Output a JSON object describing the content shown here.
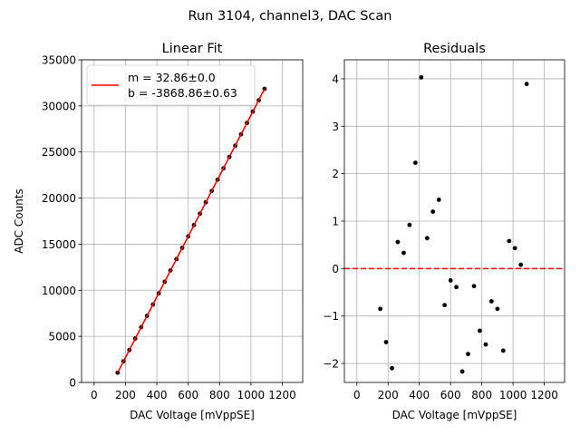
{
  "figure": {
    "suptitle": "Run 3104, channel3, DAC Scan"
  },
  "chart_data": [
    {
      "type": "line",
      "title": "Linear Fit",
      "xlabel": "DAC Voltage [mVppSE]",
      "ylabel": "ADC Counts",
      "xlim": [
        -80,
        1330
      ],
      "ylim": [
        0,
        35000
      ],
      "xticks": [
        0,
        200,
        400,
        600,
        800,
        1000,
        1200
      ],
      "yticks": [
        0,
        5000,
        10000,
        15000,
        20000,
        25000,
        30000,
        35000
      ],
      "grid": true,
      "legend": {
        "placement": "upper-left",
        "entries": [
          "m = 32.86±0.0",
          "b = -3868.86±0.63"
        ]
      },
      "series": [
        {
          "name": "data",
          "style": "scatter",
          "color": "#000000",
          "x": [
            150,
            187,
            225,
            262,
            300,
            337,
            375,
            412,
            450,
            487,
            525,
            562,
            600,
            637,
            675,
            712,
            750,
            787,
            825,
            862,
            900,
            937,
            975,
            1012,
            1050,
            1087
          ],
          "y": [
            1060,
            2290,
            3520,
            4760,
            5990,
            7220,
            8450,
            9670,
            10920,
            12150,
            13380,
            14610,
            15850,
            17080,
            18310,
            19540,
            20770,
            22000,
            23230,
            24460,
            25690,
            26920,
            28150,
            29380,
            30610,
            31850
          ]
        },
        {
          "name": "fit",
          "style": "line",
          "color": "#ff0000",
          "x": [
            150,
            1087
          ],
          "y": [
            1060,
            31850
          ]
        }
      ]
    },
    {
      "type": "scatter",
      "title": "Residuals",
      "xlabel": "DAC Voltage [mVppSE]",
      "ylabel": "",
      "xlim": [
        -80,
        1330
      ],
      "ylim": [
        -2.4,
        4.4
      ],
      "xticks": [
        0,
        200,
        400,
        600,
        800,
        1000,
        1200
      ],
      "yticks": [
        -2,
        -1,
        0,
        1,
        2,
        3,
        4
      ],
      "ytick_labels": [
        "−2",
        "−1",
        "0",
        "1",
        "2",
        "3",
        "4"
      ],
      "grid": true,
      "zero_line": {
        "y": 0,
        "color": "#ff0000",
        "style": "dashed"
      },
      "series": [
        {
          "name": "residuals",
          "color": "#000000",
          "x": [
            150,
            187,
            225,
            262,
            300,
            337,
            375,
            412,
            450,
            487,
            525,
            562,
            600,
            637,
            675,
            712,
            750,
            787,
            825,
            862,
            900,
            937,
            975,
            1012,
            1050,
            1087
          ],
          "y": [
            -0.85,
            -1.55,
            -2.1,
            0.56,
            0.33,
            0.92,
            2.23,
            4.03,
            0.64,
            1.2,
            1.45,
            -0.77,
            -0.25,
            -0.39,
            -2.17,
            -1.8,
            -0.37,
            -1.31,
            -1.6,
            -0.69,
            -0.85,
            -1.73,
            0.58,
            0.43,
            0.08,
            3.89
          ]
        }
      ]
    }
  ]
}
